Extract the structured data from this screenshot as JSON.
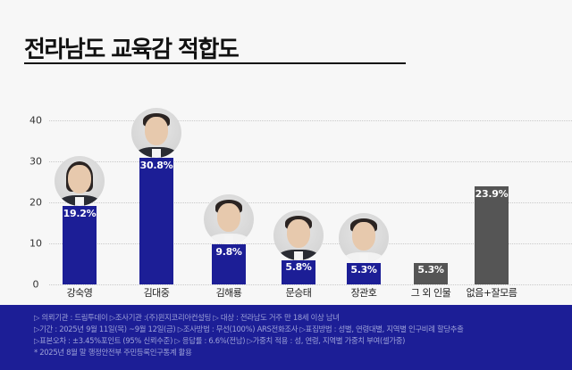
{
  "header": {
    "title": "전라남도 교육감 적합도"
  },
  "chart_data": {
    "type": "bar",
    "title": "전라남도 교육감 적합도",
    "xlabel": "",
    "ylabel": "",
    "ylim": [
      0,
      40
    ],
    "yticks": [
      0,
      10,
      20,
      30,
      40
    ],
    "grid": true,
    "categories": [
      "강숙영",
      "김대중",
      "김해룡",
      "문승태",
      "장관호",
      "그 외 인물",
      "없음+잘모름"
    ],
    "values": [
      19.2,
      30.8,
      9.8,
      5.8,
      5.3,
      5.3,
      23.9
    ],
    "value_labels": [
      "19.2%",
      "30.8%",
      "9.8%",
      "5.8%",
      "5.3%",
      "5.3%",
      "23.9%"
    ],
    "colors": [
      "#1c1e96",
      "#1c1e96",
      "#1c1e96",
      "#1c1e96",
      "#1c1e96",
      "#555555",
      "#555555"
    ],
    "has_photo": [
      true,
      true,
      true,
      true,
      true,
      false,
      false
    ]
  },
  "axis": {
    "ticks": [
      "0",
      "10",
      "20",
      "30",
      "40"
    ]
  },
  "footer": {
    "lines": [
      "▷ 의뢰기관 : 드림투데이  ▷조사기관 :(주)윈지코리아컨설팅  ▷ 대상 : 전라남도 거주 만 18세 이상 남녀",
      "▷기간 : 2025년 9월 11일(목) ~9월 12일(금) ▷조사방법 : 무선(100%) ARS전화조사 ▷표집방법 : 성별, 연령대별, 지역별  인구비례 할당추출",
      "▷표본오차 : ±3.45%포인트 (95% 신뢰수준)  ▷ 응답률 : 6.6%(전남) ▷가중치 적용 : 성, 연령, 지역별 가중치 부여(셀가중)",
      "* 2025년 8월 말 행정안전부 주민등록인구통계 활용"
    ]
  },
  "colors": {
    "primary_bar": "#1c1e96",
    "other_bar": "#555555",
    "footer_bg": "#1c1e96",
    "background": "#f7f7f7"
  }
}
